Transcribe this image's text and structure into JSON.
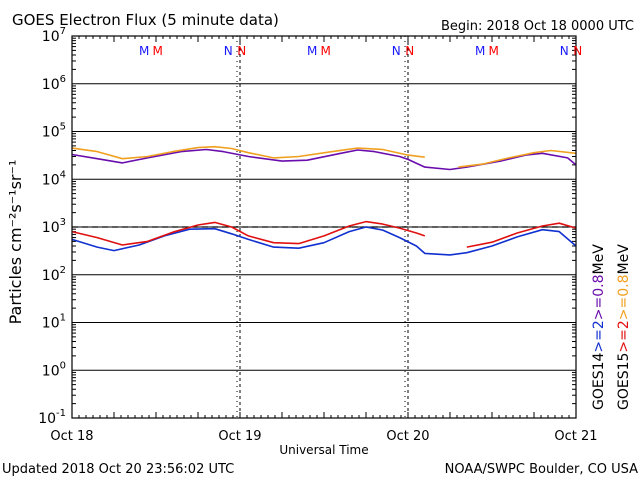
{
  "header": {
    "title": "GOES Electron Flux (5 minute data)",
    "begin": "Begin: 2018 Oct 18 0000 UTC"
  },
  "footer": {
    "updated": "Updated 2018 Oct 20 23:56:02 UTC",
    "credit": "NOAA/SWPC Boulder, CO USA"
  },
  "colors": {
    "goes14_08": "#6a0dad",
    "goes15_08": "#f0a020",
    "goes14_2": "#1030d0",
    "goes15_2": "#e01010",
    "marker_m_blue": "#1a1aff",
    "marker_m_red": "#ff0000",
    "marker_n_blue": "#1a1aff",
    "marker_n_red": "#ff0000"
  },
  "chart_data": {
    "type": "line",
    "xlabel": "Universal Time",
    "ylabel": "Particles cm⁻²s⁻¹sr⁻¹",
    "yscale": "log",
    "ylim": [
      0.1,
      10000000
    ],
    "xlim": [
      0,
      3
    ],
    "x_unit": "days since 2018 Oct 18 0000 UTC",
    "x_tick_labels": [
      "Oct 18",
      "Oct 19",
      "Oct 20",
      "Oct 21"
    ],
    "x_tick_values": [
      0,
      1,
      2,
      3
    ],
    "y_tick_exponents": [
      -1,
      0,
      1,
      2,
      3,
      4,
      5,
      6,
      7
    ],
    "threshold": {
      "value": 1000,
      "style": "dashed"
    },
    "markers": [
      {
        "label": "M",
        "x": 0.43,
        "color": "#1a1aff"
      },
      {
        "label": "M",
        "x": 0.51,
        "color": "#ff0000"
      },
      {
        "label": "N",
        "x": 0.93,
        "color": "#1a1aff"
      },
      {
        "label": "N",
        "x": 1.01,
        "color": "#ff0000"
      },
      {
        "label": "M",
        "x": 1.43,
        "color": "#1a1aff"
      },
      {
        "label": "M",
        "x": 1.51,
        "color": "#ff0000"
      },
      {
        "label": "N",
        "x": 1.93,
        "color": "#1a1aff"
      },
      {
        "label": "N",
        "x": 2.01,
        "color": "#ff0000"
      },
      {
        "label": "M",
        "x": 2.43,
        "color": "#1a1aff"
      },
      {
        "label": "M",
        "x": 2.51,
        "color": "#ff0000"
      },
      {
        "label": "N",
        "x": 2.93,
        "color": "#1a1aff"
      },
      {
        "label": "N",
        "x": 3.01,
        "color": "#ff0000"
      }
    ],
    "legend": {
      "placement": "right",
      "groups": [
        {
          "name": "GOES14",
          "items": [
            {
              "label": ">=2",
              "color": "#1030d0"
            },
            {
              "label": ">=0.8",
              "color": "#6a0dad"
            }
          ]
        },
        {
          "name": "GOES15",
          "items": [
            {
              "label": ">=2",
              "color": "#e01010"
            },
            {
              "label": ">=0.8",
              "color": "#f0a020"
            }
          ]
        }
      ],
      "unit": "MeV"
    },
    "series": [
      {
        "name": "GOES14 >=0.8 MeV",
        "color": "#6a0dad",
        "segments": [
          [
            [
              0.0,
              33000
            ],
            [
              0.15,
              27000
            ],
            [
              0.3,
              22000
            ],
            [
              0.45,
              28000
            ],
            [
              0.65,
              38000
            ],
            [
              0.8,
              42000
            ],
            [
              0.9,
              38000
            ],
            [
              1.05,
              30000
            ],
            [
              1.25,
              24000
            ],
            [
              1.4,
              25000
            ],
            [
              1.6,
              35000
            ],
            [
              1.7,
              41000
            ],
            [
              1.8,
              38000
            ],
            [
              1.95,
              30000
            ],
            [
              2.0,
              26000
            ],
            [
              2.1,
              18000
            ],
            [
              2.25,
              16000
            ],
            [
              2.35,
              18000
            ],
            [
              2.55,
              24000
            ],
            [
              2.7,
              32000
            ],
            [
              2.8,
              35000
            ],
            [
              2.95,
              28000
            ],
            [
              3.0,
              20000
            ]
          ]
        ]
      },
      {
        "name": "GOES15 >=0.8 MeV",
        "color": "#f0a020",
        "segments": [
          [
            [
              0.0,
              45000
            ],
            [
              0.15,
              38000
            ],
            [
              0.3,
              27000
            ],
            [
              0.45,
              30000
            ],
            [
              0.6,
              38000
            ],
            [
              0.75,
              46000
            ],
            [
              0.85,
              48000
            ],
            [
              0.95,
              44000
            ],
            [
              1.05,
              36000
            ],
            [
              1.2,
              28000
            ],
            [
              1.35,
              30000
            ],
            [
              1.55,
              38000
            ],
            [
              1.7,
              45000
            ],
            [
              1.85,
              42000
            ],
            [
              2.0,
              32000
            ],
            [
              2.1,
              29000
            ]
          ],
          [
            [
              2.3,
              18000
            ],
            [
              2.45,
              21000
            ],
            [
              2.6,
              28000
            ],
            [
              2.75,
              36000
            ],
            [
              2.85,
              40000
            ],
            [
              3.0,
              35000
            ]
          ]
        ]
      },
      {
        "name": "GOES14 >=2 MeV",
        "color": "#1030d0",
        "segments": [
          [
            [
              0.0,
              550
            ],
            [
              0.15,
              380
            ],
            [
              0.25,
              320
            ],
            [
              0.4,
              420
            ],
            [
              0.55,
              650
            ],
            [
              0.7,
              900
            ],
            [
              0.85,
              920
            ],
            [
              0.95,
              720
            ],
            [
              1.05,
              550
            ],
            [
              1.2,
              380
            ],
            [
              1.35,
              360
            ],
            [
              1.5,
              470
            ],
            [
              1.65,
              800
            ],
            [
              1.75,
              1000
            ],
            [
              1.85,
              860
            ],
            [
              1.95,
              600
            ],
            [
              2.05,
              400
            ],
            [
              2.1,
              280
            ],
            [
              2.25,
              260
            ],
            [
              2.35,
              290
            ],
            [
              2.5,
              400
            ],
            [
              2.65,
              620
            ],
            [
              2.8,
              880
            ],
            [
              2.9,
              800
            ],
            [
              3.0,
              400
            ]
          ]
        ]
      },
      {
        "name": "GOES15 >=2 MeV",
        "color": "#e01010",
        "segments": [
          [
            [
              0.0,
              800
            ],
            [
              0.15,
              600
            ],
            [
              0.3,
              420
            ],
            [
              0.45,
              500
            ],
            [
              0.6,
              780
            ],
            [
              0.75,
              1100
            ],
            [
              0.85,
              1250
            ],
            [
              0.95,
              1000
            ],
            [
              1.05,
              650
            ],
            [
              1.2,
              470
            ],
            [
              1.35,
              450
            ],
            [
              1.5,
              650
            ],
            [
              1.65,
              1050
            ],
            [
              1.75,
              1300
            ],
            [
              1.85,
              1150
            ],
            [
              1.95,
              950
            ],
            [
              2.05,
              750
            ],
            [
              2.1,
              650
            ]
          ],
          [
            [
              2.35,
              380
            ],
            [
              2.5,
              480
            ],
            [
              2.65,
              750
            ],
            [
              2.8,
              1050
            ],
            [
              2.9,
              1200
            ],
            [
              3.0,
              950
            ]
          ]
        ]
      }
    ]
  }
}
